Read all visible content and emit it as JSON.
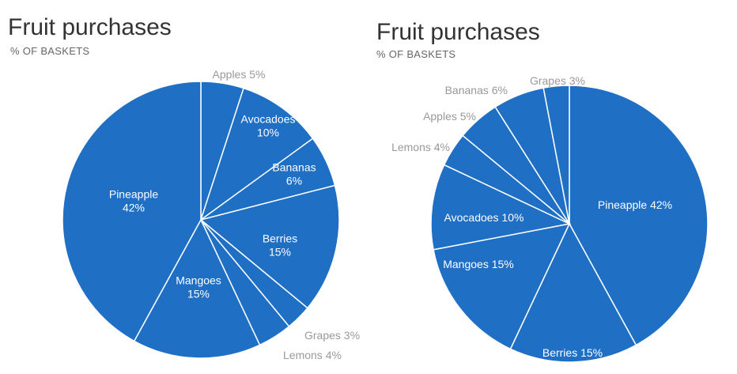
{
  "chart_data": [
    {
      "type": "pie",
      "title": "Fruit purchases",
      "subtitle": "% OF BASKETS",
      "unit": "%",
      "color": "#1f6fc5",
      "start": "top",
      "direction": "clockwise",
      "slices": [
        {
          "label": "Apples",
          "value": 5,
          "lines": [
            "Apples 5%"
          ]
        },
        {
          "label": "Avocadoes",
          "value": 10,
          "lines": [
            "Avocadoes",
            "10%"
          ]
        },
        {
          "label": "Bananas",
          "value": 6,
          "lines": [
            "Bananas",
            "6%"
          ]
        },
        {
          "label": "Berries",
          "value": 15,
          "lines": [
            "Berries",
            "15%"
          ]
        },
        {
          "label": "Grapes",
          "value": 3,
          "lines": [
            "Grapes 3%"
          ]
        },
        {
          "label": "Lemons",
          "value": 4,
          "lines": [
            "Lemons 4%"
          ]
        },
        {
          "label": "Mangoes",
          "value": 15,
          "lines": [
            "Mangoes",
            "15%"
          ]
        },
        {
          "label": "Pineapple",
          "value": 42,
          "lines": [
            "Pineapple",
            "42%"
          ]
        }
      ]
    },
    {
      "type": "pie",
      "title": "Fruit purchases",
      "subtitle": "% OF BASKETS",
      "unit": "%",
      "color": "#1f6fc5",
      "start": "top",
      "direction": "clockwise",
      "slices": [
        {
          "label": "Pineapple",
          "value": 42,
          "lines": [
            "Pineapple 42%"
          ]
        },
        {
          "label": "Berries",
          "value": 15,
          "lines": [
            "Berries 15%"
          ]
        },
        {
          "label": "Mangoes",
          "value": 15,
          "lines": [
            "Mangoes 15%"
          ]
        },
        {
          "label": "Avocadoes",
          "value": 10,
          "lines": [
            "Avocadoes 10%"
          ]
        },
        {
          "label": "Lemons",
          "value": 4,
          "lines": [
            "Lemons 4%"
          ]
        },
        {
          "label": "Apples",
          "value": 5,
          "lines": [
            "Apples 5%"
          ]
        },
        {
          "label": "Bananas",
          "value": 6,
          "lines": [
            "Bananas 6%"
          ]
        },
        {
          "label": "Grapes",
          "value": 3,
          "lines": [
            "Grapes 3%"
          ]
        }
      ]
    }
  ]
}
